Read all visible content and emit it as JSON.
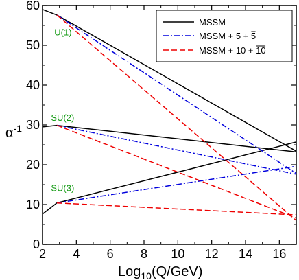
{
  "chart_data": {
    "type": "line",
    "title": "",
    "xlabel": "Log",
    "xlabel_sub": "10",
    "xlabel_rest": "(Q/GeV)",
    "ylabel": "α",
    "ylabel_sup": "-1",
    "xlim": [
      2,
      17
    ],
    "ylim": [
      0,
      60
    ],
    "xticks": [
      2,
      4,
      6,
      8,
      10,
      12,
      14,
      16
    ],
    "yticks": [
      0,
      10,
      20,
      30,
      40,
      50,
      60
    ],
    "grid": false,
    "legend_position": "top-right",
    "colors": {
      "mssm": "#000000",
      "mssm5": "#0000dd",
      "mssm10": "#ee0000",
      "annotation": "#119911"
    },
    "series": [
      {
        "id": "mssm",
        "name": "MSSM",
        "style": "solid",
        "color": "#000000",
        "lines": [
          {
            "x": [
              2,
              2.85,
              17
            ],
            "y": [
              59.0,
              57.6,
              23.4
            ]
          },
          {
            "x": [
              2,
              2.85,
              17
            ],
            "y": [
              29.5,
              29.9,
              23.2
            ]
          },
          {
            "x": [
              2,
              2.85,
              17
            ],
            "y": [
              7.6,
              10.4,
              25.7
            ]
          }
        ]
      },
      {
        "id": "mssm5",
        "name": "MSSM + 5 + 5̄",
        "legend_base": "MSSM + 5 + ",
        "legend_bar": "5",
        "style": "dashdot",
        "color": "#0000dd",
        "lines": [
          {
            "x": [
              2.85,
              17
            ],
            "y": [
              57.6,
              17.8
            ]
          },
          {
            "x": [
              2.85,
              17
            ],
            "y": [
              29.9,
              17.6
            ]
          },
          {
            "x": [
              2.85,
              17
            ],
            "y": [
              10.4,
              19.6
            ]
          }
        ]
      },
      {
        "id": "mssm10",
        "name": "MSSM + 10 + 10̄",
        "legend_base": "MSSM + 10 + ",
        "legend_bar": "10",
        "style": "dashed",
        "color": "#ee0000",
        "lines": [
          {
            "x": [
              2.85,
              17
            ],
            "y": [
              57.6,
              6.0
            ]
          },
          {
            "x": [
              2.85,
              17
            ],
            "y": [
              29.9,
              6.6
            ]
          },
          {
            "x": [
              2.85,
              17
            ],
            "y": [
              10.4,
              7.4
            ]
          }
        ]
      }
    ],
    "annotations": [
      {
        "text": "U(1)",
        "x": 2.7,
        "y": 52.5
      },
      {
        "text": "SU(2)",
        "x": 2.5,
        "y": 31.0
      },
      {
        "text": "SU(3)",
        "x": 2.5,
        "y": 13.4
      }
    ]
  }
}
